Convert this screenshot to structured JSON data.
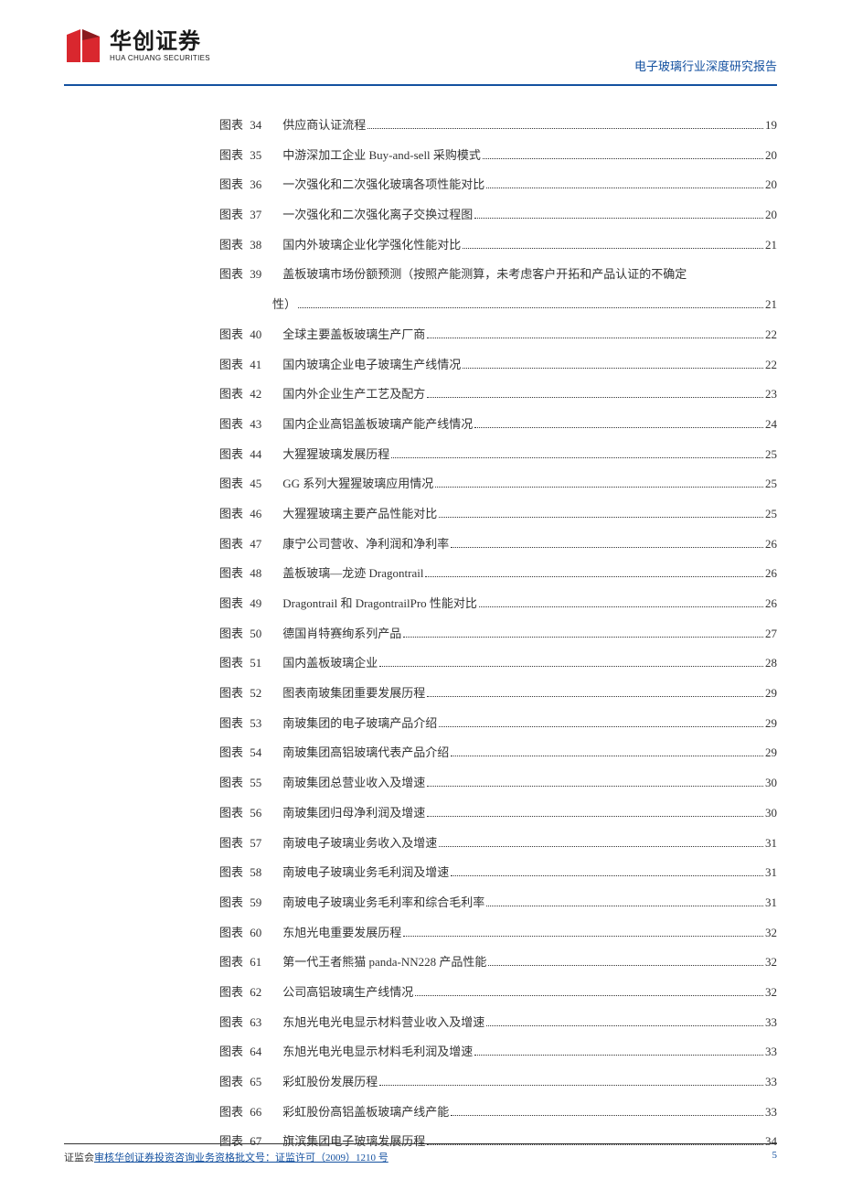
{
  "header": {
    "logo_cn": "华创证券",
    "logo_en": "HUA CHUANG SECURITIES",
    "doc_title": "电子玻璃行业深度研究报告",
    "logo_colors": {
      "red": "#d9272e",
      "dark": "#5a5a5a"
    },
    "rule_color": "#1451a0"
  },
  "toc": {
    "label_prefix": "图表",
    "text_color": "#333333",
    "font_size_pt": 10,
    "entries": [
      {
        "num": "34",
        "title": "供应商认证流程",
        "page": "19"
      },
      {
        "num": "35",
        "title": "中游深加工企业 Buy-and-sell 采购模式",
        "page": "20"
      },
      {
        "num": "36",
        "title": "一次强化和二次强化玻璃各项性能对比",
        "page": "20"
      },
      {
        "num": "37",
        "title": "一次强化和二次强化离子交换过程图",
        "page": "20"
      },
      {
        "num": "38",
        "title": "国内外玻璃企业化学强化性能对比",
        "page": "21"
      },
      {
        "num": "39",
        "title": "盖板玻璃市场份额预测（按照产能测算，未考虑客户开拓和产品认证的不确定",
        "page": "",
        "wrap": true,
        "cont_title": "性）",
        "cont_page": "21"
      },
      {
        "num": "40",
        "title": "全球主要盖板玻璃生产厂商",
        "page": "22"
      },
      {
        "num": "41",
        "title": "国内玻璃企业电子玻璃生产线情况",
        "page": "22"
      },
      {
        "num": "42",
        "title": "国内外企业生产工艺及配方",
        "page": "23"
      },
      {
        "num": "43",
        "title": "国内企业高铝盖板玻璃产能产线情况",
        "page": "24"
      },
      {
        "num": "44",
        "title": "大猩猩玻璃发展历程",
        "page": "25"
      },
      {
        "num": "45",
        "title": "GG 系列大猩猩玻璃应用情况",
        "page": "25"
      },
      {
        "num": "46",
        "title": "大猩猩玻璃主要产品性能对比",
        "page": "25"
      },
      {
        "num": "47",
        "title": "康宁公司营收、净利润和净利率",
        "page": "26"
      },
      {
        "num": "48",
        "title": "盖板玻璃—龙迹 Dragontrail",
        "page": "26"
      },
      {
        "num": "49",
        "title": "Dragontrail 和 DragontrailPro 性能对比",
        "page": "26"
      },
      {
        "num": "50",
        "title": "德国肖特赛绚系列产品",
        "page": "27"
      },
      {
        "num": "51",
        "title": "国内盖板玻璃企业",
        "page": "28"
      },
      {
        "num": "52",
        "title": "图表南玻集团重要发展历程",
        "page": "29"
      },
      {
        "num": "53",
        "title": "南玻集团的电子玻璃产品介绍",
        "page": "29"
      },
      {
        "num": "54",
        "title": "南玻集团高铝玻璃代表产品介绍",
        "page": "29"
      },
      {
        "num": "55",
        "title": "南玻集团总营业收入及增速",
        "page": "30"
      },
      {
        "num": "56",
        "title": "南玻集团归母净利润及增速",
        "page": "30"
      },
      {
        "num": "57",
        "title": "南玻电子玻璃业务收入及增速",
        "page": "31"
      },
      {
        "num": "58",
        "title": "南玻电子玻璃业务毛利润及增速",
        "page": "31"
      },
      {
        "num": "59",
        "title": "南玻电子玻璃业务毛利率和综合毛利率",
        "page": "31"
      },
      {
        "num": "60",
        "title": "东旭光电重要发展历程",
        "page": "32"
      },
      {
        "num": "61",
        "title": "第一代王者熊猫 panda-NN228 产品性能",
        "page": "32"
      },
      {
        "num": "62",
        "title": "公司高铝玻璃生产线情况",
        "page": "32"
      },
      {
        "num": "63",
        "title": "东旭光电光电显示材料营业收入及增速",
        "page": "33"
      },
      {
        "num": "64",
        "title": "东旭光电光电显示材料毛利润及增速",
        "page": "33"
      },
      {
        "num": "65",
        "title": "彩虹股份发展历程",
        "page": "33"
      },
      {
        "num": "66",
        "title": "彩虹股份高铝盖板玻璃产线产能",
        "page": "33"
      },
      {
        "num": "67",
        "title": "旗滨集团电子玻璃发展历程",
        "page": "34"
      }
    ]
  },
  "footer": {
    "prefix": "证监会",
    "underlined": "审核华创证券投资咨询业务资格批文号：证监许可（2009）1210 号",
    "page_number": "5",
    "link_color": "#1451a0"
  }
}
